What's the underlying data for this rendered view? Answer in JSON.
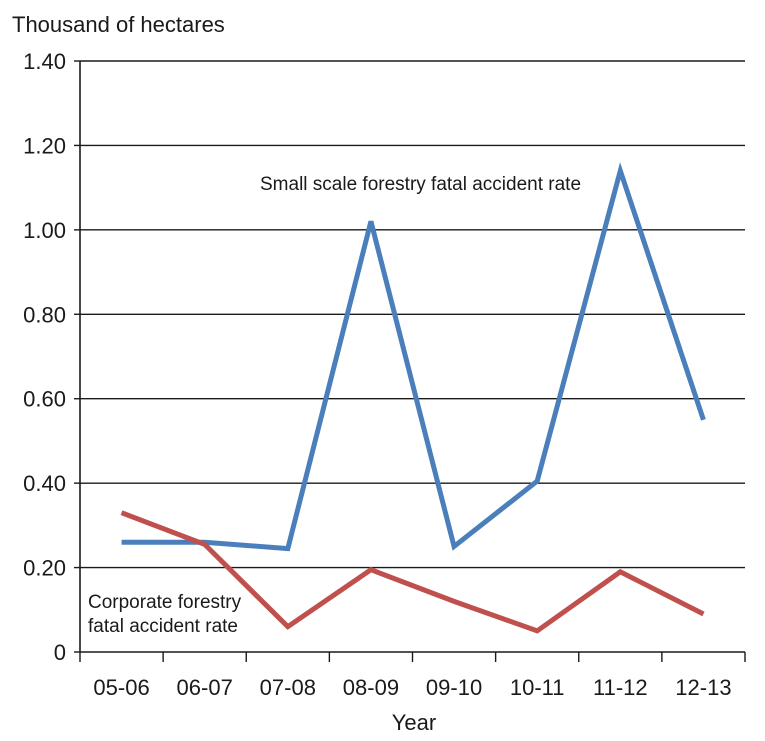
{
  "chart_data": {
    "type": "line",
    "ylabel": "Thousand of hectares",
    "xlabel": "Year",
    "categories": [
      "05-06",
      "06-07",
      "07-08",
      "08-09",
      "09-10",
      "10-11",
      "11-12",
      "12-13"
    ],
    "y_ticks": [
      "0",
      "0.20",
      "0.40",
      "0.60",
      "0.80",
      "1.00",
      "1.20",
      "1.40"
    ],
    "ylim": [
      0,
      1.4
    ],
    "grid": true,
    "series": [
      {
        "name": "Small scale forestry fatal accident rate",
        "color": "#4a7fbc",
        "values": [
          0.26,
          0.26,
          0.245,
          1.02,
          0.25,
          0.405,
          1.14,
          0.55
        ]
      },
      {
        "name": "Corporate forestry fatal accident rate",
        "name_lines": [
          "Corporate forestry",
          "fatal accident rate"
        ],
        "color": "#c0504d",
        "values": [
          0.33,
          0.255,
          0.06,
          0.195,
          0.12,
          0.05,
          0.19,
          0.09
        ]
      }
    ]
  }
}
